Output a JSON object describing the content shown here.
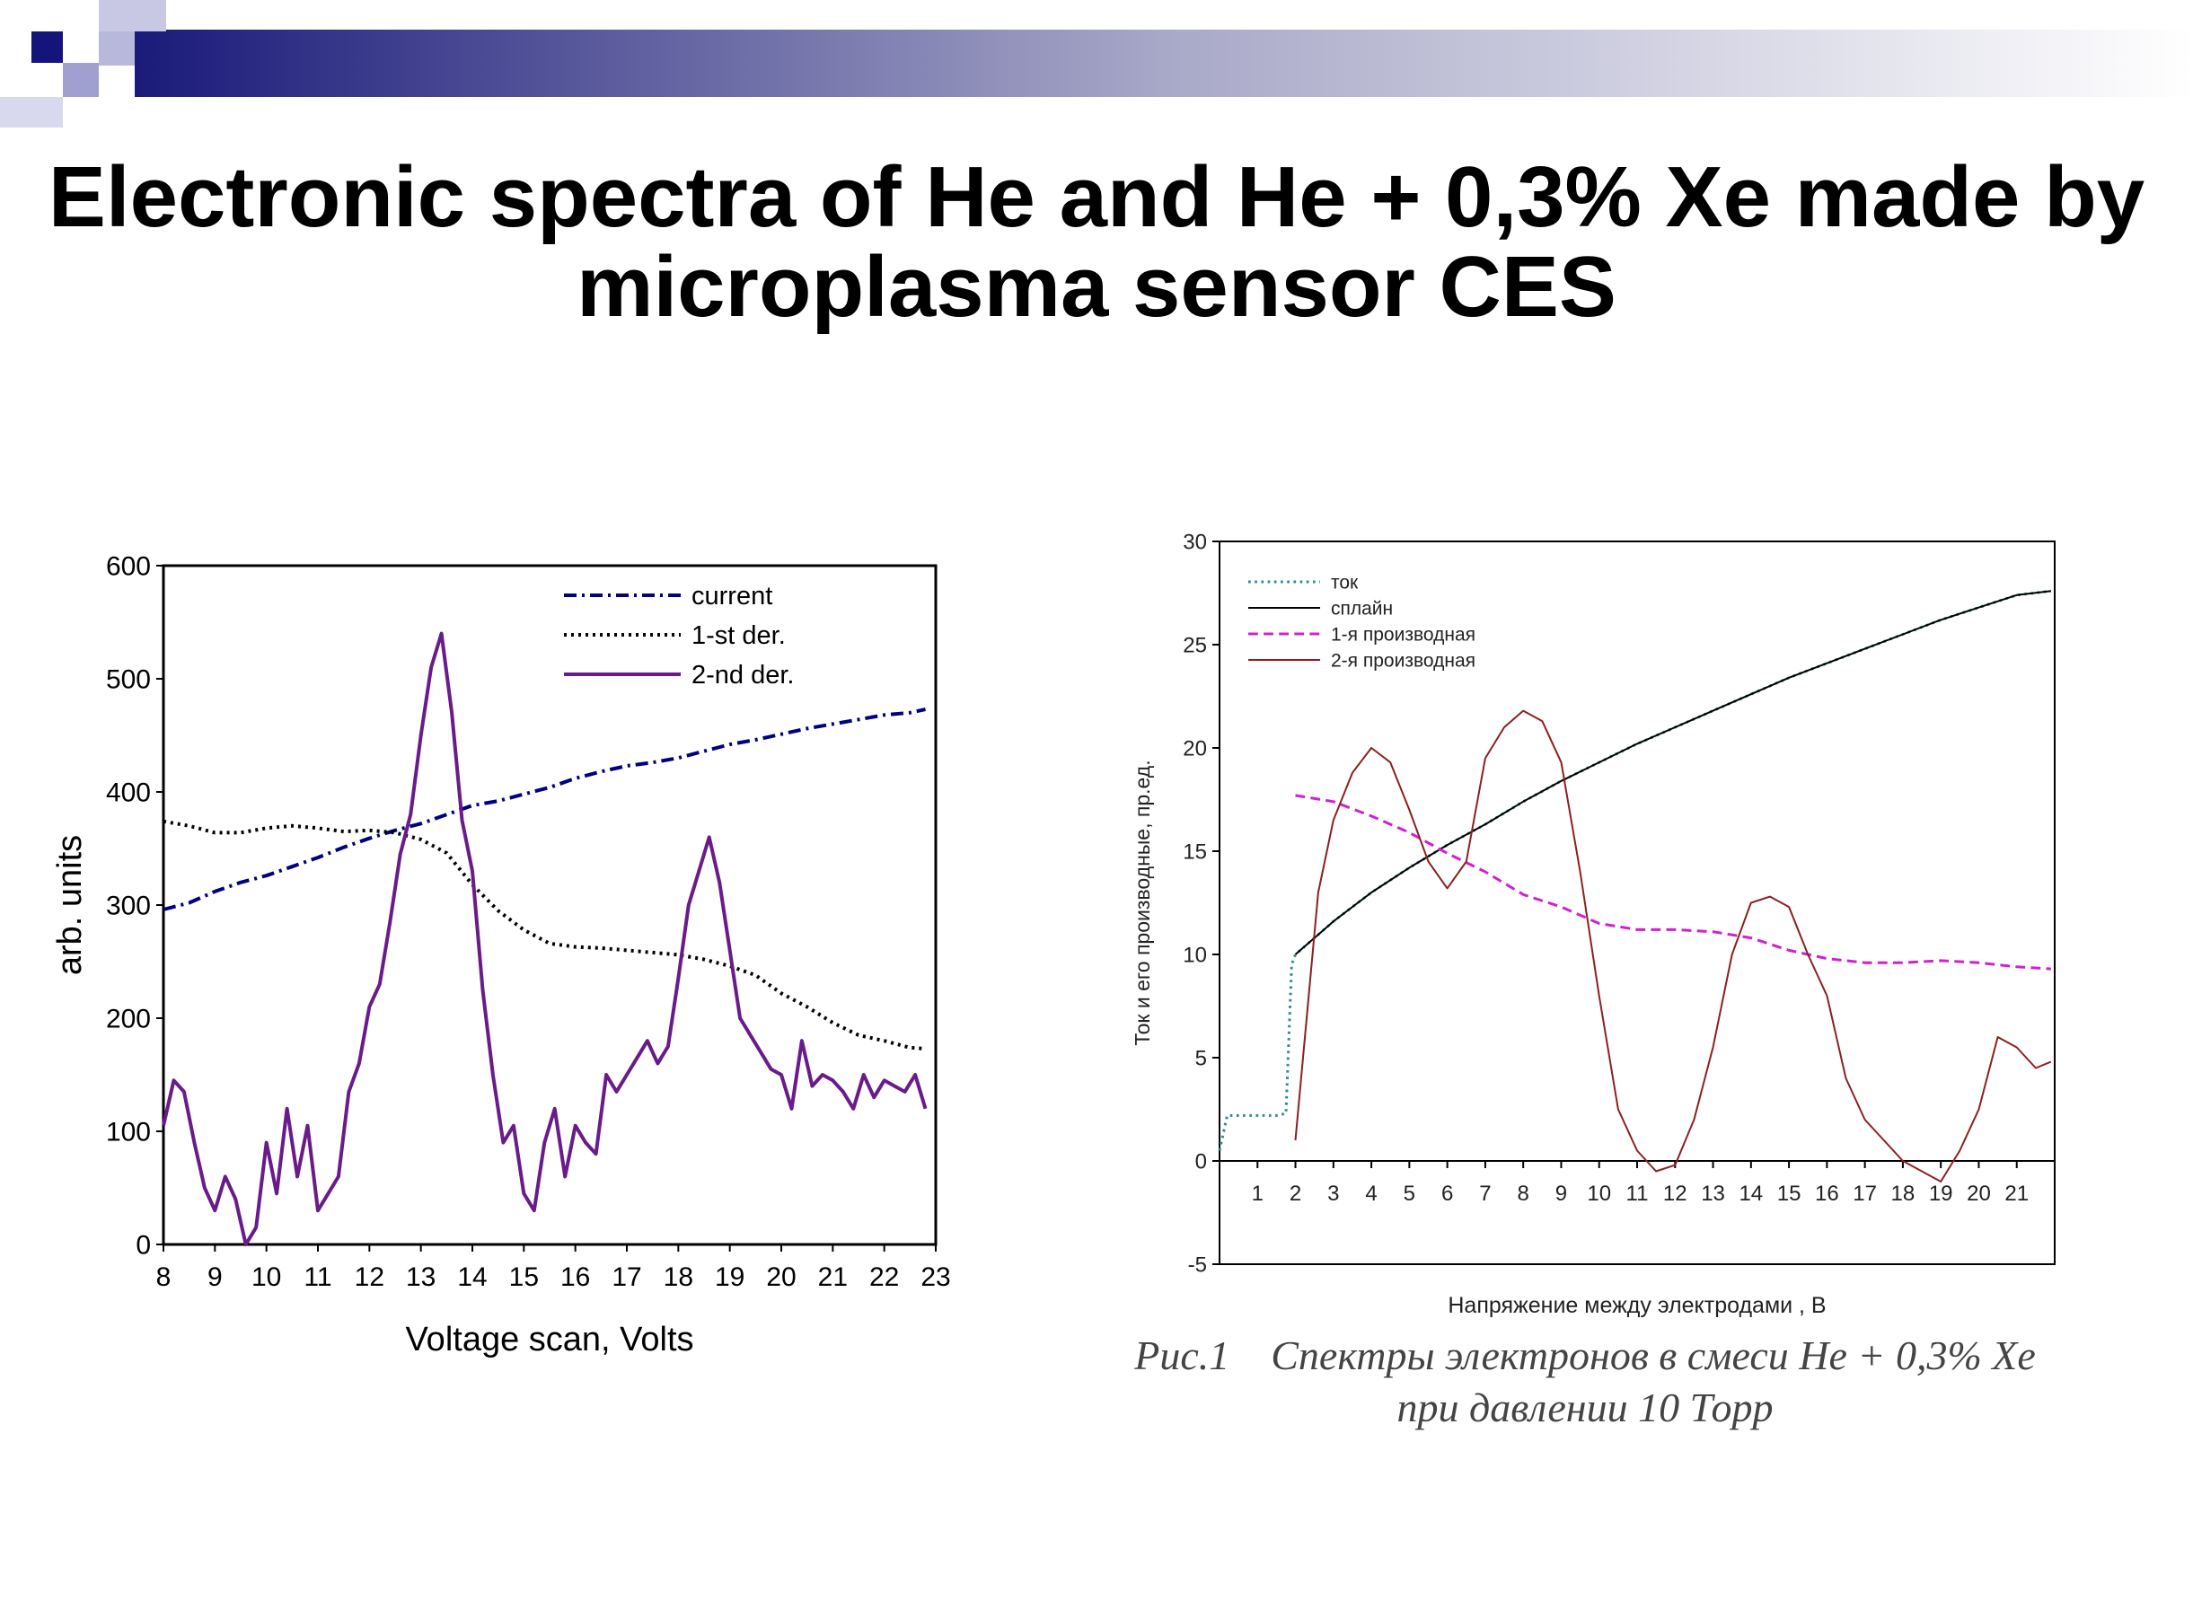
{
  "slide": {
    "title_line1": "Electronic spectra of He and He + 0,3% Xe made by",
    "title_line2": "microplasma sensor CES",
    "caption_line1": "Рис.1    Спектры электронов в смеси He + 0,3% Xe",
    "caption_line2": "при давлении 10 Торр",
    "banner_colors": [
      "#1a1a7a",
      "#b0b0d8",
      "#ffffff"
    ]
  },
  "chart_data": [
    {
      "type": "line",
      "title": "",
      "xlabel": "Voltage scan, Volts",
      "ylabel": "arb. units",
      "xlim": [
        8,
        23
      ],
      "ylim": [
        0,
        600
      ],
      "xticks": [
        "8",
        "9",
        "10",
        "11",
        "12",
        "13",
        "14",
        "15",
        "16",
        "17",
        "18",
        "19",
        "20",
        "21",
        "22",
        "23"
      ],
      "yticks": [
        "0",
        "100",
        "200",
        "300",
        "400",
        "500",
        "600"
      ],
      "legend_position": "top-right",
      "series": [
        {
          "name": "current",
          "color": "#000080",
          "dash": "dash-dot",
          "x": [
            8,
            8.5,
            9,
            9.5,
            10,
            10.5,
            11,
            11.5,
            12,
            12.5,
            13,
            13.5,
            14,
            14.5,
            15,
            15.5,
            16,
            16.5,
            17,
            17.5,
            18,
            18.5,
            19,
            19.5,
            20,
            20.5,
            21,
            21.5,
            22,
            22.5,
            22.8
          ],
          "y": [
            296,
            302,
            312,
            320,
            326,
            334,
            342,
            351,
            359,
            366,
            372,
            380,
            388,
            392,
            398,
            404,
            412,
            418,
            423,
            426,
            430,
            436,
            442,
            446,
            451,
            456,
            460,
            464,
            468,
            470,
            473
          ]
        },
        {
          "name": "1-st der.",
          "color": "#000000",
          "dash": "dotted",
          "x": [
            8,
            8.5,
            9,
            9.5,
            10,
            10.5,
            11,
            11.5,
            12,
            12.5,
            13,
            13.5,
            14,
            14.5,
            15,
            15.5,
            16,
            16.5,
            17,
            17.5,
            18,
            18.5,
            19,
            19.5,
            20,
            20.5,
            21,
            21.5,
            22,
            22.5,
            22.8
          ],
          "y": [
            374,
            370,
            364,
            364,
            368,
            370,
            368,
            365,
            366,
            364,
            358,
            346,
            318,
            295,
            278,
            266,
            263,
            262,
            260,
            258,
            256,
            252,
            246,
            238,
            222,
            210,
            196,
            185,
            180,
            174,
            173
          ]
        },
        {
          "name": "2-nd der.",
          "color": "#6a1b8a",
          "dash": "solid",
          "x": [
            8,
            8.2,
            8.4,
            8.6,
            8.8,
            9,
            9.2,
            9.4,
            9.6,
            9.8,
            10,
            10.2,
            10.4,
            10.6,
            10.8,
            11,
            11.2,
            11.4,
            11.6,
            11.8,
            12,
            12.2,
            12.4,
            12.6,
            12.8,
            13,
            13.2,
            13.4,
            13.6,
            13.8,
            14,
            14.2,
            14.4,
            14.6,
            14.8,
            15,
            15.2,
            15.4,
            15.6,
            15.8,
            16,
            16.2,
            16.4,
            16.6,
            16.8,
            17,
            17.2,
            17.4,
            17.6,
            17.8,
            18,
            18.2,
            18.4,
            18.6,
            18.8,
            19,
            19.2,
            19.4,
            19.6,
            19.8,
            20,
            20.2,
            20.4,
            20.6,
            20.8,
            21,
            21.2,
            21.4,
            21.6,
            21.8,
            22,
            22.2,
            22.4,
            22.6,
            22.8
          ],
          "y": [
            105,
            145,
            135,
            90,
            50,
            30,
            60,
            40,
            0,
            15,
            90,
            45,
            120,
            60,
            105,
            30,
            45,
            60,
            135,
            160,
            210,
            230,
            285,
            345,
            380,
            450,
            510,
            540,
            470,
            375,
            330,
            225,
            150,
            90,
            105,
            45,
            30,
            90,
            120,
            60,
            105,
            90,
            80,
            150,
            135,
            150,
            165,
            180,
            160,
            175,
            235,
            300,
            330,
            360,
            320,
            260,
            200,
            185,
            170,
            155,
            150,
            120,
            180,
            140,
            150,
            145,
            135,
            120,
            150,
            130,
            145,
            140,
            135,
            150,
            120
          ]
        }
      ]
    },
    {
      "type": "line",
      "title": "",
      "xlabel": "Напряжение между электродами , В",
      "ylabel": "Ток и его производные, пр.ед.",
      "xlim": [
        0,
        22
      ],
      "ylim": [
        -5,
        30
      ],
      "xticks": [
        "1",
        "2",
        "3",
        "4",
        "5",
        "6",
        "7",
        "8",
        "9",
        "10",
        "11",
        "12",
        "13",
        "14",
        "15",
        "16",
        "17",
        "18",
        "19",
        "20",
        "21"
      ],
      "yticks": [
        "-5",
        "0",
        "5",
        "10",
        "15",
        "20",
        "25",
        "30"
      ],
      "legend_position": "top-left",
      "series": [
        {
          "name": "ток",
          "color": "#2e8b8b",
          "dash": "dotted",
          "x": [
            0,
            0.2,
            1,
            1.5,
            1.75,
            1.9,
            2,
            2.5,
            3,
            4,
            5,
            6,
            7,
            8,
            9,
            10,
            11,
            12,
            13,
            14,
            15,
            16,
            17,
            18,
            19,
            20,
            21,
            21.9
          ],
          "y": [
            0.5,
            2.2,
            2.2,
            2.2,
            2.3,
            9.5,
            10,
            10.8,
            11.6,
            13.0,
            14.2,
            15.3,
            16.3,
            17.4,
            18.4,
            19.3,
            20.2,
            21.0,
            21.8,
            22.6,
            23.4,
            24.1,
            24.8,
            25.5,
            26.2,
            26.8,
            27.4,
            27.6
          ]
        },
        {
          "name": "сплайн",
          "color": "#000000",
          "dash": "solid",
          "x": [
            2,
            2.5,
            3,
            4,
            5,
            6,
            7,
            8,
            9,
            10,
            11,
            12,
            13,
            14,
            15,
            16,
            17,
            18,
            19,
            20,
            21,
            21.9
          ],
          "y": [
            10,
            10.8,
            11.6,
            13.0,
            14.2,
            15.3,
            16.3,
            17.4,
            18.4,
            19.3,
            20.2,
            21.0,
            21.8,
            22.6,
            23.4,
            24.1,
            24.8,
            25.5,
            26.2,
            26.8,
            27.4,
            27.6
          ]
        },
        {
          "name": "1-я производная",
          "color": "#d020d0",
          "dash": "dashed",
          "x": [
            2,
            3,
            4,
            5,
            6,
            7,
            8,
            9,
            10,
            11,
            12,
            13,
            14,
            15,
            16,
            17,
            18,
            19,
            20,
            21,
            21.9
          ],
          "y": [
            17.7,
            17.4,
            16.7,
            15.9,
            14.9,
            14.0,
            12.9,
            12.3,
            11.5,
            11.2,
            11.2,
            11.1,
            10.8,
            10.2,
            9.8,
            9.6,
            9.6,
            9.7,
            9.6,
            9.4,
            9.3
          ]
        },
        {
          "name": "2-я производная",
          "color": "#8b2020",
          "dash": "solid",
          "x": [
            2,
            2.3,
            2.6,
            3,
            3.5,
            4,
            4.5,
            5,
            5.5,
            6,
            6.5,
            7,
            7.5,
            8,
            8.5,
            9,
            9.5,
            10,
            10.5,
            11,
            11.5,
            12,
            12.5,
            13,
            13.5,
            14,
            14.5,
            15,
            15.5,
            16,
            16.5,
            17,
            17.5,
            18,
            18.5,
            19,
            19.5,
            20,
            20.5,
            21,
            21.5,
            21.9
          ],
          "y": [
            1,
            7,
            13,
            16.5,
            18.8,
            20,
            19.3,
            17,
            14.5,
            13.2,
            14.5,
            19.5,
            21,
            21.8,
            21.3,
            19.3,
            14,
            8,
            2.5,
            0.5,
            -0.5,
            -0.2,
            2,
            5.5,
            10,
            12.5,
            12.8,
            12.3,
            10,
            8,
            4,
            2,
            1,
            0,
            -0.5,
            -1,
            0.5,
            2.5,
            6,
            5.5,
            4.5,
            4.8
          ]
        }
      ]
    }
  ]
}
